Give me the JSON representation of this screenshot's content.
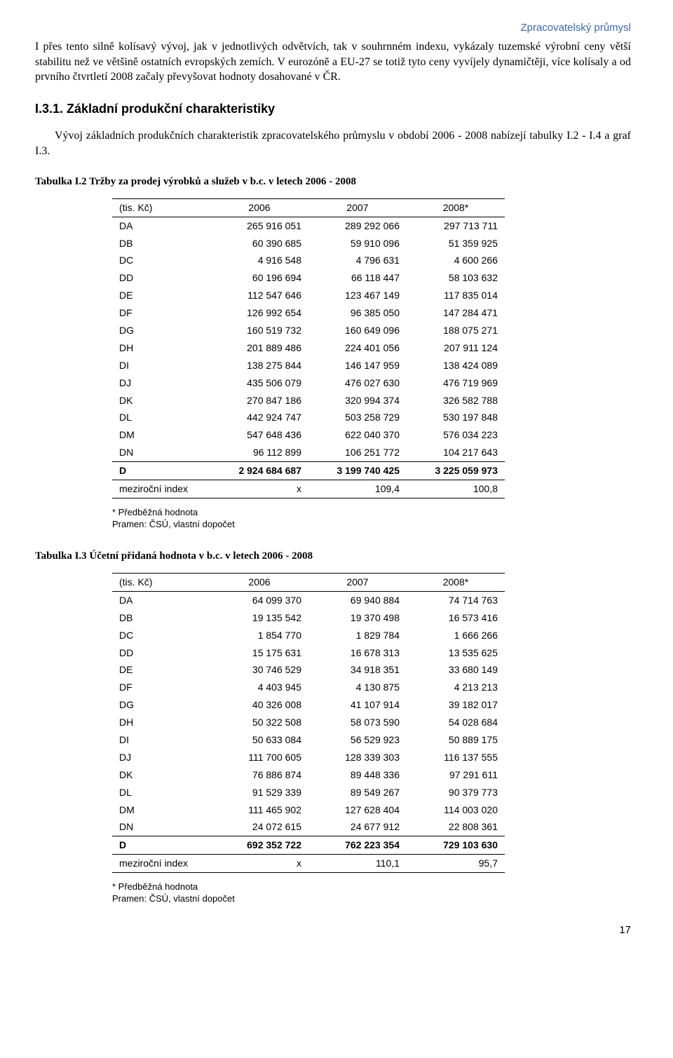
{
  "header": {
    "right": "Zpracovatelský průmysl"
  },
  "paragraph_intro": "I přes tento silně kolísavý vývoj, jak v jednotlivých odvětvích, tak v souhrnném indexu, vykázaly tuzemské výrobní ceny větší stabilitu než ve většině ostatních evropských zemích. V eurozóně a EU-27 se totiž tyto ceny vyvíjely dynamičtěji, více kolísaly a od prvního čtvrtletí 2008 začaly převyšovat hodnoty dosahované v ČR.",
  "section_heading": "I.3.1. Základní produkční charakteristiky",
  "paragraph_section": "Vývoj základních produkčních charakteristik zpracovatelského průmyslu v období 2006 - 2008 nabízejí tabulky I.2 - I.4 a  graf I.3.",
  "table1": {
    "title": "Tabulka I.2 Tržby za prodej výrobků a služeb v b.c. v letech 2006 - 2008",
    "unit_label": "(tis. Kč)",
    "columns": [
      "2006",
      "2007",
      "2008*"
    ],
    "rows": [
      [
        "DA",
        "265 916 051",
        "289 292 066",
        "297 713 711"
      ],
      [
        "DB",
        "60 390 685",
        "59 910 096",
        "51 359 925"
      ],
      [
        "DC",
        "4 916 548",
        "4 796 631",
        "4 600 266"
      ],
      [
        "DD",
        "60 196 694",
        "66 118 447",
        "58 103 632"
      ],
      [
        "DE",
        "112 547 646",
        "123 467 149",
        "117 835 014"
      ],
      [
        "DF",
        "126 992 654",
        "96 385 050",
        "147 284 471"
      ],
      [
        "DG",
        "160 519 732",
        "160 649 096",
        "188 075 271"
      ],
      [
        "DH",
        "201 889 486",
        "224 401 056",
        "207 911 124"
      ],
      [
        "DI",
        "138 275 844",
        "146 147 959",
        "138 424 089"
      ],
      [
        "DJ",
        "435 506 079",
        "476 027 630",
        "476 719 969"
      ],
      [
        "DK",
        "270 847 186",
        "320 994 374",
        "326 582 788"
      ],
      [
        "DL",
        "442 924 747",
        "503 258 729",
        "530 197 848"
      ],
      [
        "DM",
        "547 648 436",
        "622 040 370",
        "576 034 223"
      ],
      [
        "DN",
        "96 112 899",
        "106 251 772",
        "104 217 643"
      ]
    ],
    "total_row": [
      "D",
      "2 924 684 687",
      "3 199 740 425",
      "3 225 059 973"
    ],
    "index_row": [
      "meziroční index",
      "x",
      "109,4",
      "100,8"
    ]
  },
  "table2": {
    "title": "Tabulka I.3 Účetní přidaná hodnota v b.c. v letech 2006 - 2008",
    "unit_label": "(tis. Kč)",
    "columns": [
      "2006",
      "2007",
      "2008*"
    ],
    "rows": [
      [
        "DA",
        "64 099 370",
        "69 940 884",
        "74 714 763"
      ],
      [
        "DB",
        "19 135 542",
        "19 370 498",
        "16 573 416"
      ],
      [
        "DC",
        "1 854 770",
        "1 829 784",
        "1 666 266"
      ],
      [
        "DD",
        "15 175 631",
        "16 678 313",
        "13 535 625"
      ],
      [
        "DE",
        "30 746 529",
        "34 918 351",
        "33 680 149"
      ],
      [
        "DF",
        "4 403 945",
        "4 130 875",
        "4 213 213"
      ],
      [
        "DG",
        "40 326 008",
        "41 107 914",
        "39 182 017"
      ],
      [
        "DH",
        "50 322 508",
        "58 073 590",
        "54 028 684"
      ],
      [
        "DI",
        "50 633 084",
        "56 529 923",
        "50 889 175"
      ],
      [
        "DJ",
        "111 700 605",
        "128 339 303",
        "116 137 555"
      ],
      [
        "DK",
        "76 886 874",
        "89 448 336",
        "97 291 611"
      ],
      [
        "DL",
        "91 529 339",
        "89 549 267",
        "90 379 773"
      ],
      [
        "DM",
        "111 465 902",
        "127 628 404",
        "114 003 020"
      ],
      [
        "DN",
        "24 072 615",
        "24 677 912",
        "22 808 361"
      ]
    ],
    "total_row": [
      "D",
      "692 352 722",
      "762 223 354",
      "729 103 630"
    ],
    "index_row": [
      "meziroční index",
      "x",
      "110,1",
      "95,7"
    ]
  },
  "footnote": {
    "line1": "* Předběžná hodnota",
    "line2": "Pramen: ČSÚ, vlastní dopočet"
  },
  "page_number": "17"
}
